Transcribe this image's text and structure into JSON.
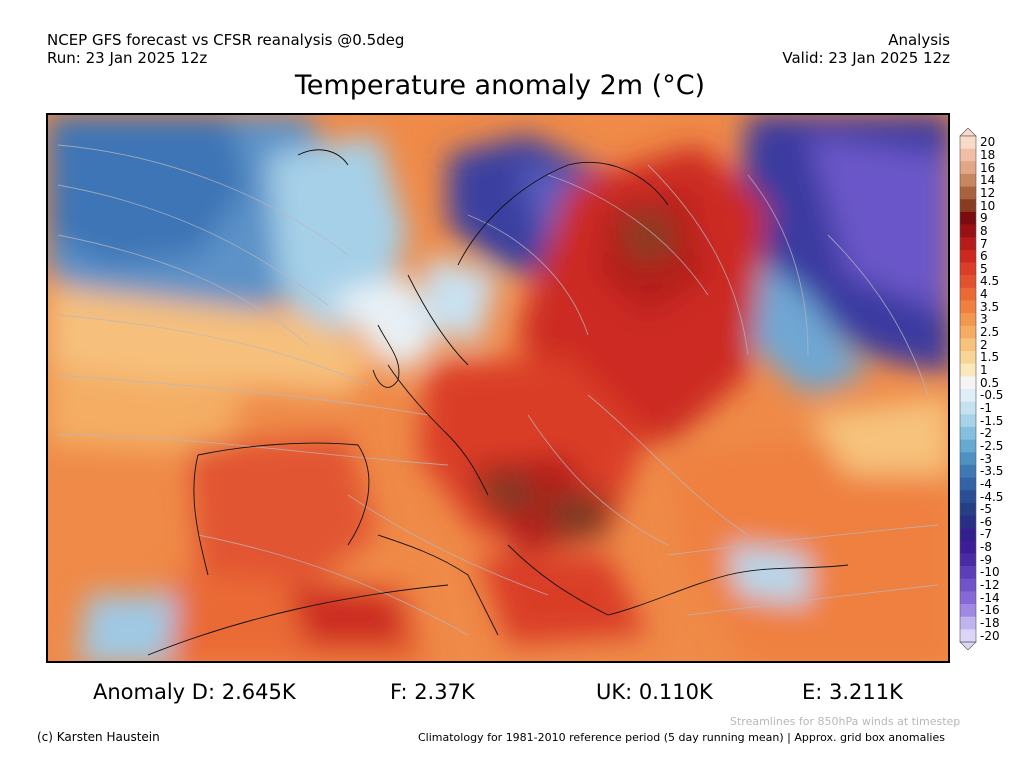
{
  "header": {
    "line1_left": "NCEP GFS forecast vs CFSR reanalysis @0.5deg",
    "line2_left": "Run: 23 Jan 2025 12z",
    "line1_right": "Analysis",
    "line2_right": "Valid: 23 Jan 2025 12z"
  },
  "title": "Temperature anomaly 2m (°C)",
  "colorbar": {
    "labels": [
      "20",
      "18",
      "16",
      "14",
      "12",
      "10",
      "9",
      "8",
      "7",
      "6",
      "5",
      "4.5",
      "4",
      "3.5",
      "3",
      "2.5",
      "2",
      "1.5",
      "1",
      "0.5",
      "-0.5",
      "-1",
      "-1.5",
      "-2",
      "-2.5",
      "-3",
      "-3.5",
      "-4",
      "-4.5",
      "-5",
      "-6",
      "-7",
      "-8",
      "-9",
      "-10",
      "-12",
      "-14",
      "-16",
      "-18",
      "-20"
    ],
    "colors": [
      "#f9d9c8",
      "#efbfa5",
      "#e0a686",
      "#c88660",
      "#a9623e",
      "#8a3c22",
      "#7b0d12",
      "#9a1015",
      "#b51c1a",
      "#cc2a20",
      "#da3e26",
      "#e2532d",
      "#ea6a35",
      "#ef8040",
      "#f2974f",
      "#f4ad63",
      "#f6c27c",
      "#f8d698",
      "#fbe9bb",
      "#f5f5f5",
      "#e0eef7",
      "#c6e2f0",
      "#a7d2e8",
      "#86bfdd",
      "#66a9d0",
      "#4f92c2",
      "#3f79b3",
      "#3363a4",
      "#2a4f96",
      "#253f87",
      "#2a2f86",
      "#33208c",
      "#3d1d99",
      "#4b2aa5",
      "#5c3fb8",
      "#7053c9",
      "#8669d6",
      "#a088e2",
      "#c0b3ee",
      "#ddd5f8"
    ]
  },
  "stats": {
    "anomaly_d": "Anomaly D: 2.645K",
    "anomaly_f": "F: 2.37K",
    "anomaly_uk": "UK: 0.110K",
    "anomaly_e": "E: 3.211K"
  },
  "footer": {
    "copyright": "(c) Karsten Haustein",
    "streamlines_note": "Streamlines for 850hPa winds at timestep",
    "climatology_note": "Climatology for 1981-2010 reference period (5 day running mean) | Approx. grid box anomalies"
  }
}
